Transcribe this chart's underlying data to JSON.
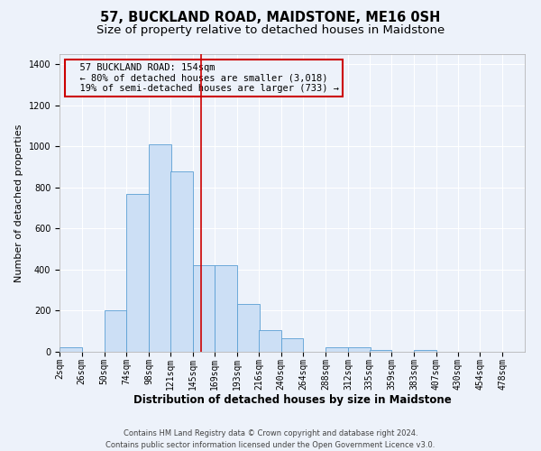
{
  "title": "57, BUCKLAND ROAD, MAIDSTONE, ME16 0SH",
  "subtitle": "Size of property relative to detached houses in Maidstone",
  "xlabel": "Distribution of detached houses by size in Maidstone",
  "ylabel": "Number of detached properties",
  "footer_line1": "Contains HM Land Registry data © Crown copyright and database right 2024.",
  "footer_line2": "Contains public sector information licensed under the Open Government Licence v3.0.",
  "annotation_line1": "  57 BUCKLAND ROAD: 154sqm",
  "annotation_line2": "  ← 80% of detached houses are smaller (3,018)",
  "annotation_line3": "  19% of semi-detached houses are larger (733) →",
  "bar_color": "#ccdff5",
  "bar_edge_color": "#5a9fd4",
  "vline_color": "#cc0000",
  "vline_x": 154,
  "categories": [
    "2sqm",
    "26sqm",
    "50sqm",
    "74sqm",
    "98sqm",
    "121sqm",
    "145sqm",
    "169sqm",
    "193sqm",
    "216sqm",
    "240sqm",
    "264sqm",
    "288sqm",
    "312sqm",
    "335sqm",
    "359sqm",
    "383sqm",
    "407sqm",
    "430sqm",
    "454sqm",
    "478sqm"
  ],
  "bin_edges": [
    2,
    26,
    50,
    74,
    98,
    121,
    145,
    169,
    193,
    216,
    240,
    264,
    288,
    312,
    335,
    359,
    383,
    407,
    430,
    454,
    478
  ],
  "bin_width": 24,
  "bar_heights": [
    20,
    0,
    200,
    770,
    1010,
    880,
    420,
    420,
    235,
    105,
    68,
    0,
    20,
    20,
    10,
    0,
    10,
    0,
    0,
    0,
    0
  ],
  "ylim": [
    0,
    1450
  ],
  "yticks": [
    0,
    200,
    400,
    600,
    800,
    1000,
    1200,
    1400
  ],
  "background_color": "#edf2fa",
  "grid_color": "#ffffff",
  "title_fontsize": 10.5,
  "subtitle_fontsize": 9.5,
  "xlabel_fontsize": 8.5,
  "ylabel_fontsize": 8,
  "tick_fontsize": 7,
  "annotation_box_edgecolor": "#cc0000",
  "annotation_fontsize": 7.5
}
